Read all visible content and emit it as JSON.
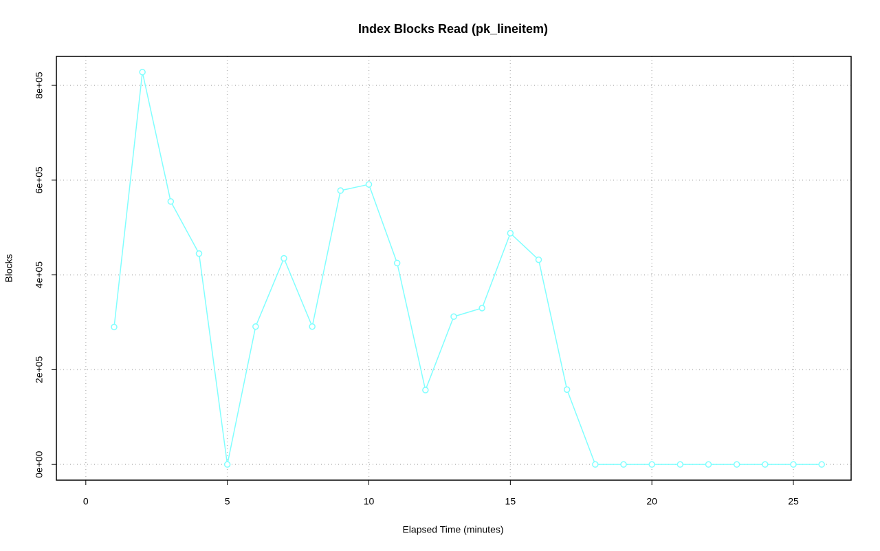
{
  "chart_data": {
    "type": "line",
    "title": "Index Blocks Read (pk_lineitem)",
    "x_label": "Elapsed Time (minutes)",
    "y_label": "Blocks",
    "x": [
      1,
      2,
      3,
      4,
      5,
      6,
      7,
      8,
      9,
      10,
      11,
      12,
      13,
      14,
      15,
      16,
      17,
      18,
      19,
      20,
      21,
      22,
      23,
      24,
      25,
      26
    ],
    "series": [
      {
        "name": "pk_lineitem",
        "color": "#80ffff",
        "values": [
          290000,
          828000,
          555000,
          445000,
          0,
          291000,
          435000,
          291000,
          578000,
          591000,
          425000,
          157000,
          312000,
          330000,
          488000,
          432000,
          158000,
          0,
          0,
          0,
          0,
          0,
          0,
          0,
          0,
          0
        ]
      }
    ],
    "xlim": [
      -1.04,
      27.04
    ],
    "xticks": [
      0,
      5,
      10,
      15,
      20,
      25
    ],
    "ylim": [
      -33120,
      861120
    ],
    "yticks": [
      {
        "value": 0,
        "label": "0e+00"
      },
      {
        "value": 200000,
        "label": "2e+05"
      },
      {
        "value": 400000,
        "label": "4e+05"
      },
      {
        "value": 600000,
        "label": "6e+05"
      },
      {
        "value": 800000,
        "label": "8e+05"
      }
    ],
    "grid": true
  }
}
